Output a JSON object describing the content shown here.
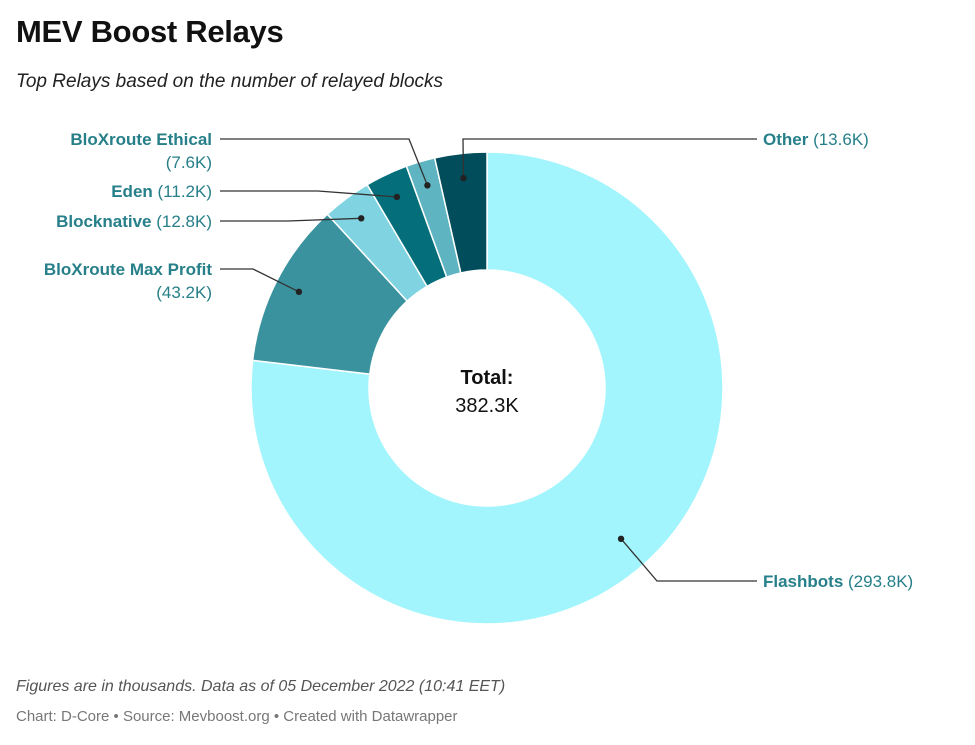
{
  "header": {
    "title": "MEV Boost Relays",
    "subtitle": "Top Relays based on the number of relayed blocks"
  },
  "footer": {
    "note": "Figures are in thousands. Data as of 05 December 2022 (10:41 EET)",
    "credits": "Chart: D-Core • Source: Mevboost.org • Created with Datawrapper"
  },
  "chart_data": {
    "type": "pie",
    "variant": "donut",
    "center_label": {
      "title": "Total:",
      "value": "382.3K"
    },
    "slices": [
      {
        "name": "Flashbots",
        "value": 293.8,
        "display": "(293.8K)",
        "color": "#a2f5fc"
      },
      {
        "name": "BloXroute Max Profit",
        "value": 43.2,
        "display": "(43.2K)",
        "color": "#3a929e"
      },
      {
        "name": "Blocknative",
        "value": 12.8,
        "display": "(12.8K)",
        "color": "#80d4e2"
      },
      {
        "name": "Eden",
        "value": 11.2,
        "display": "(11.2K)",
        "color": "#046f7b"
      },
      {
        "name": "BloXroute Ethical",
        "value": 7.6,
        "display": "(7.6K)",
        "color": "#5fb4c2"
      },
      {
        "name": "Other",
        "value": 13.6,
        "display": "(13.6K)",
        "color": "#024d5c"
      }
    ],
    "label_color": "#267f89"
  }
}
